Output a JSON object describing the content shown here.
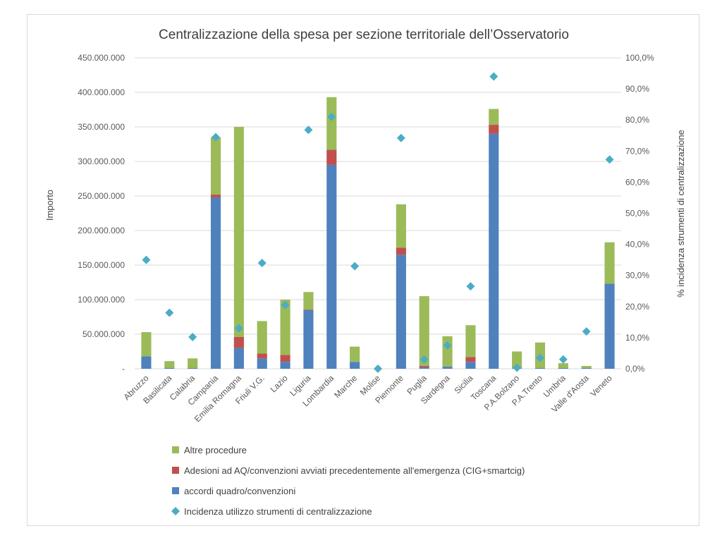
{
  "chart_data": {
    "type": "bar",
    "stacked": true,
    "title": "Centralizzazione della spesa per sezione territoriale dell’Osservatorio",
    "ylabel": "Importo",
    "y2label": "% incidenza strumenti di centralizzazione",
    "ylim": [
      0,
      450000000
    ],
    "y2lim": [
      0,
      100
    ],
    "yticks": [
      "-",
      "50.000.000",
      "100.000.000",
      "150.000.000",
      "200.000.000",
      "250.000.000",
      "300.000.000",
      "350.000.000",
      "400.000.000",
      "450.000.000"
    ],
    "y2ticks": [
      "0,0%",
      "10,0%",
      "20,0%",
      "30,0%",
      "40,0%",
      "50,0%",
      "60,0%",
      "70,0%",
      "80,0%",
      "90,0%",
      "100,0%"
    ],
    "grid": true,
    "legend_position": "bottom",
    "categories": [
      "Abruzzo",
      "Basilicata",
      "Calabria",
      "Campania",
      "Emilia Romagna",
      "Friuli V.G.",
      "Lazio",
      "Liguria",
      "Lombardia",
      "Marche",
      "Molise",
      "Piemonte",
      "Puglia",
      "Sardegna",
      "Sicilia",
      "Toscana",
      "P.A.Bolzano",
      "P.A.Trento",
      "Umbria",
      "Valle d'Aosta",
      "Veneto"
    ],
    "series": [
      {
        "name": "accordi quadro/convenzioni",
        "color": "#4f81bd",
        "values": [
          18000000,
          1000000,
          1000000,
          248000000,
          30000000,
          15000000,
          10000000,
          85000000,
          295000000,
          10000000,
          0,
          165000000,
          2000000,
          3000000,
          10000000,
          340000000,
          1000000,
          1000000,
          1000000,
          1000000,
          123000000
        ]
      },
      {
        "name": "Adesioni ad AQ/convenzioni avviati precedentemente all'emergenza (CIG+smartcig)",
        "color": "#c0504d",
        "values": [
          0,
          0,
          0,
          4000000,
          16000000,
          7000000,
          10000000,
          1000000,
          22000000,
          0,
          0,
          10000000,
          2000000,
          0,
          7000000,
          13000000,
          0,
          0,
          0,
          0,
          0
        ]
      },
      {
        "name": "Altre procedure",
        "color": "#9bbb59",
        "values": [
          35000000,
          10000000,
          14000000,
          83000000,
          304000000,
          47000000,
          80000000,
          25000000,
          76000000,
          22000000,
          0,
          63000000,
          101000000,
          44000000,
          46000000,
          23000000,
          24000000,
          37000000,
          7000000,
          3000000,
          60000000
        ]
      }
    ],
    "line_series": {
      "name": "Incidenza utilizzo strumenti di centralizzazione",
      "color": "#4bacc6",
      "axis": "secondary",
      "marker": "diamond",
      "values": [
        35.0,
        18.0,
        10.2,
        74.5,
        13.0,
        34.0,
        20.5,
        76.8,
        81.0,
        33.0,
        0.0,
        74.2,
        3.0,
        7.5,
        26.5,
        94.0,
        0.3,
        3.5,
        3.0,
        12.0,
        67.3
      ]
    },
    "legend_order": [
      "Altre procedure",
      "Adesioni ad AQ/convenzioni avviati precedentemente all'emergenza (CIG+smartcig)",
      "accordi quadro/convenzioni",
      "Incidenza utilizzo strumenti di centralizzazione"
    ]
  }
}
